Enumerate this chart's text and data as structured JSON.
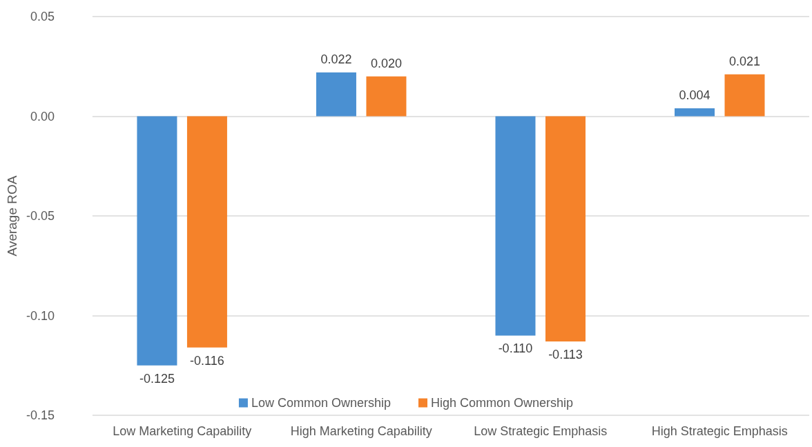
{
  "chart_data": {
    "type": "bar",
    "ylabel": "Average ROA",
    "categories": [
      "Low Marketing Capability",
      "High Marketing Capability",
      "Low Strategic Emphasis",
      "High Strategic Emphasis"
    ],
    "series": [
      {
        "name": "Low Common Ownership",
        "color": "#4a90d2",
        "values": [
          -0.125,
          0.022,
          -0.11,
          0.004
        ],
        "value_labels": [
          "-0.125",
          "0.022",
          "-0.110",
          "0.004"
        ]
      },
      {
        "name": "High Common Ownership",
        "color": "#f5822a",
        "values": [
          -0.116,
          0.02,
          -0.113,
          0.021
        ],
        "value_labels": [
          "-0.116",
          "0.020",
          "-0.113",
          "0.021"
        ]
      }
    ],
    "ylim": [
      -0.15,
      0.05
    ],
    "yticks": [
      {
        "value": -0.15,
        "label": "-0.15"
      },
      {
        "value": -0.1,
        "label": "-0.10"
      },
      {
        "value": -0.05,
        "label": "-0.05"
      },
      {
        "value": 0,
        "label": "0.00"
      },
      {
        "value": 0.05,
        "label": "0.05"
      }
    ],
    "grid": "y",
    "legend": "bottom"
  }
}
